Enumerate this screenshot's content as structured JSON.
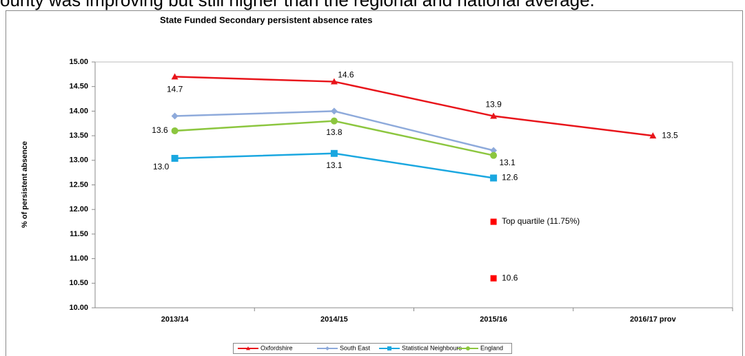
{
  "caption": "ounty was improving but still higher than the regional and national average.",
  "chart_data": {
    "type": "line",
    "title": "State Funded Secondary persistent absence rates",
    "y_label": "% of persistent absence",
    "categories": [
      "2013/14",
      "2014/15",
      "2015/16",
      "2016/17 prov"
    ],
    "ylim": [
      10,
      15
    ],
    "yticks": [
      {
        "value": 10,
        "label": "10.00"
      },
      {
        "value": 10.5,
        "label": "10.50"
      },
      {
        "value": 11,
        "label": "11.00"
      },
      {
        "value": 11.5,
        "label": "11.50"
      },
      {
        "value": 12,
        "label": "12.00"
      },
      {
        "value": 12.5,
        "label": "12.50"
      },
      {
        "value": 13,
        "label": "13.00"
      },
      {
        "value": 13.5,
        "label": "13.50"
      },
      {
        "value": 14,
        "label": "14.00"
      },
      {
        "value": 14.5,
        "label": "14.50"
      },
      {
        "value": 15,
        "label": "15.00"
      }
    ],
    "grid": false,
    "series": [
      {
        "name": "Oxfordshire",
        "color": "#e8141a",
        "marker": "triangle",
        "values": [
          14.7,
          14.6,
          13.9,
          13.5
        ],
        "value_labels": [
          "14.7",
          "14.6",
          "13.9",
          "13.5"
        ]
      },
      {
        "name": "South East",
        "color": "#8eaadb",
        "marker": "diamond",
        "values": [
          13.9,
          14.0,
          13.2,
          null
        ]
      },
      {
        "name": "Statistical Neighbours",
        "color": "#1aa7e0",
        "marker": "square",
        "values": [
          13.04,
          13.14,
          12.64,
          null
        ],
        "value_labels": [
          "13.0",
          "13.1",
          "12.6",
          null
        ]
      },
      {
        "name": "England",
        "color": "#8cc63f",
        "marker": "circle",
        "values": [
          13.6,
          13.8,
          13.1,
          null
        ],
        "value_labels": [
          "13.6",
          "13.8",
          "13.1",
          null
        ]
      }
    ],
    "points": [
      {
        "x": "2015/16",
        "value": 11.75,
        "label": "Top quartile (11.75%)",
        "color": "#ff0000"
      },
      {
        "x": "2015/16",
        "value": 10.6,
        "label": "10.6",
        "color": "#ff0000"
      }
    ]
  }
}
